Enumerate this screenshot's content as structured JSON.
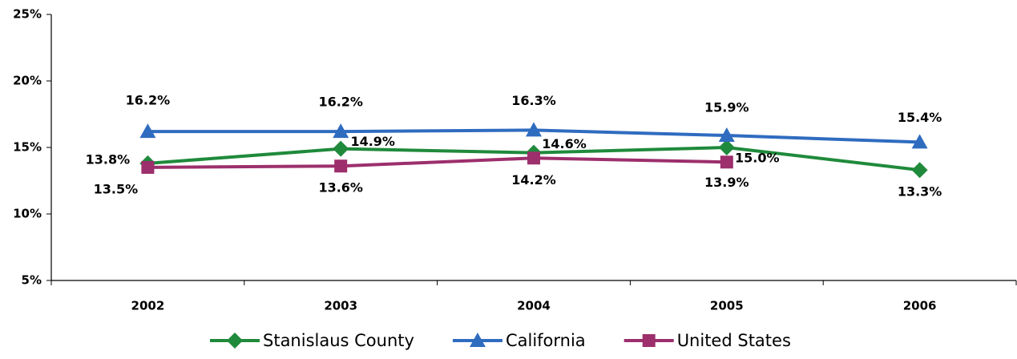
{
  "chart_data": {
    "type": "line",
    "categories": [
      "2002",
      "2003",
      "2004",
      "2005",
      "2006"
    ],
    "series": [
      {
        "name": "Stanislaus County",
        "color": "#1f8a3b",
        "marker": "diamond",
        "values": [
          13.8,
          14.9,
          14.6,
          15.0,
          13.3
        ],
        "value_labels": [
          "13.8%",
          "14.9%",
          "14.6%",
          "15.0%",
          "13.3%"
        ]
      },
      {
        "name": "California",
        "color": "#2f6cc0",
        "marker": "triangle",
        "values": [
          16.2,
          16.2,
          16.3,
          15.9,
          15.4
        ],
        "value_labels": [
          "16.2%",
          "16.2%",
          "16.3%",
          "15.9%",
          "15.4%"
        ]
      },
      {
        "name": "United States",
        "color": "#9c2f6c",
        "marker": "square",
        "values": [
          13.5,
          13.6,
          14.2,
          13.9,
          null
        ],
        "value_labels": [
          "13.5%",
          "13.6%",
          "14.2%",
          "13.9%",
          null
        ]
      }
    ],
    "ylim": [
      5,
      25
    ],
    "yticks": [
      {
        "value": 5,
        "label": "5%"
      },
      {
        "value": 10,
        "label": "10%"
      },
      {
        "value": 15,
        "label": "15%"
      },
      {
        "value": 20,
        "label": "20%"
      },
      {
        "value": 25,
        "label": "25%"
      }
    ],
    "legend": "bottom"
  }
}
